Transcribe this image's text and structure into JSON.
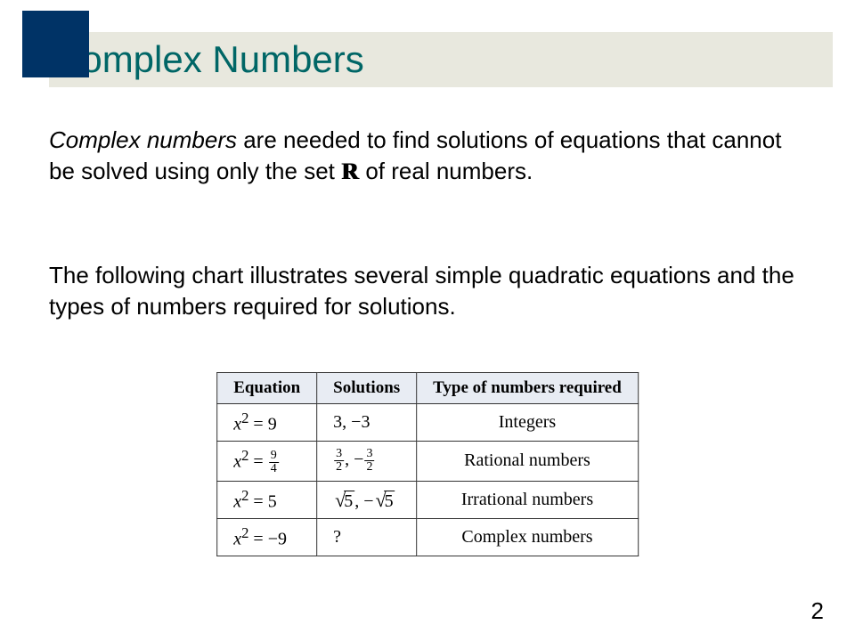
{
  "colors": {
    "accent_square": "#003366",
    "title_bar_bg": "#e8e8de",
    "title_text": "#006666",
    "table_header_bg": "#e8ecf3",
    "body_text": "#000000",
    "background": "#ffffff"
  },
  "typography": {
    "title_fontsize": 42,
    "body_fontsize": 26,
    "table_fontsize": 20,
    "pagenum_fontsize": 26,
    "body_font": "Arial",
    "table_font": "Times New Roman"
  },
  "title": "Complex Numbers",
  "para1_italic": "Complex numbers",
  "para1_rest_a": " are needed to find solutions of equations that cannot be solved using only the set ",
  "para1_rest_b": " of real numbers.",
  "para2": "The following chart illustrates several simple quadratic equations and the types of numbers required for solutions.",
  "table": {
    "type": "table",
    "headers": [
      "Equation",
      "Solutions",
      "Type of numbers required"
    ],
    "rows": [
      {
        "eq_var": "x",
        "eq_exp": "2",
        "eq_rhs": "9",
        "sol": "3, −3",
        "type": "Integers"
      },
      {
        "eq_var": "x",
        "eq_exp": "2",
        "eq_rhs_frac": {
          "num": "9",
          "den": "4"
        },
        "sol_frac_a": {
          "num": "3",
          "den": "2"
        },
        "sol_frac_b": {
          "num": "3",
          "den": "2"
        },
        "type": "Rational numbers"
      },
      {
        "eq_var": "x",
        "eq_exp": "2",
        "eq_rhs": "5",
        "sol_sqrt": "5",
        "type": "Irrational numbers"
      },
      {
        "eq_var": "x",
        "eq_exp": "2",
        "eq_rhs": "−9",
        "sol": "?",
        "type": "Complex numbers"
      }
    ]
  },
  "page_number": "2"
}
